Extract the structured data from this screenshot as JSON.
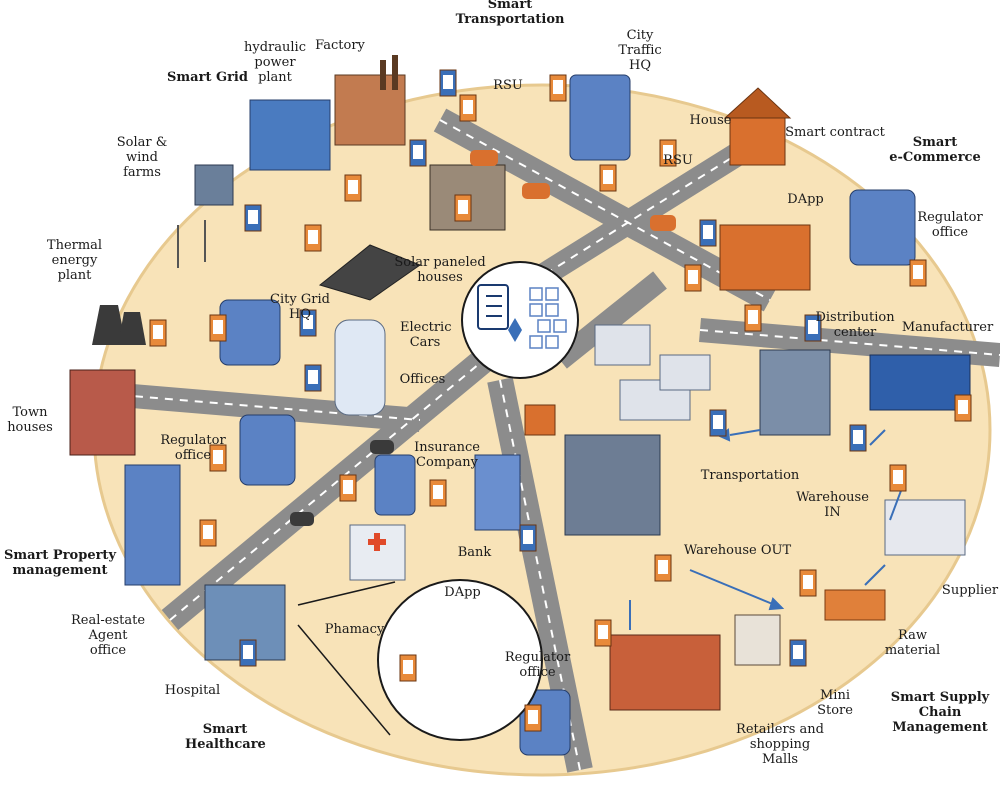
{
  "labels": {
    "smart_transportation": "Smart\nTransportation",
    "city_traffic_hq": "City\nTraffic\nHQ",
    "factory": "Factory",
    "hydraulic_power_plant": "hydraulic\npower\nplant",
    "smart_grid": "Smart Grid",
    "rsu_1": "RSU",
    "rsu_2": "RSU",
    "house": "House",
    "smart_contract": "Smart contract",
    "smart_ecommerce": "Smart\ne-Commerce",
    "dapp_1": "DApp",
    "regulator_office_1": "Regulator\noffice",
    "solar_wind_farms": "Solar &\nwind\nfarms",
    "thermal_energy_plant": "Thermal\nenergy\nplant",
    "solar_paneled_houses": "Solar paneled\nhouses",
    "city_grid_hq": "City Grid\nHQ",
    "electric_cars": "Electric\nCars",
    "offices": "Offices",
    "distribution_center": "Distribution\ncenter",
    "manufacturer": "Manufacturer",
    "town_houses": "Town\nhouses",
    "regulator_office_2": "Regulator\noffice",
    "insurance_company": "Insurance\nCompany",
    "transportation": "Transportation",
    "warehouse_in": "Warehouse\nIN",
    "smart_property_management": "Smart Property\nmanagement",
    "bank": "Bank",
    "warehouse_out": "Warehouse OUT",
    "supplier": "Supplier",
    "dapp_2": "DApp",
    "real_estate_agent_office": "Real-estate\nAgent\noffice",
    "pharmacy": "Phamacy",
    "raw_material": "Raw\nmaterial",
    "regulator_office_3": "Regulator\noffice",
    "hospital": "Hospital",
    "mini_store": "Mini\nStore",
    "smart_supply_chain_management": "Smart Supply\nChain\nManagement",
    "smart_healthcare": "Smart\nHealthcare",
    "retailers_shopping_malls": "Retailers and\nshopping\nMalls"
  },
  "colors": {
    "ground": "#f8e3b8",
    "ground_edge": "#e7c98f",
    "road": "#8c8c8c",
    "road_line": "#ffffff",
    "building_blue": "#5b82c4",
    "building_orange": "#d9702e",
    "node_orange": "#e88a3a",
    "node_blue": "#3a6fb8"
  },
  "icons": [
    "blockchain-icon",
    "checklist-icon",
    "ethereum-icon",
    "wifi-icon",
    "truck-icon",
    "car-icon",
    "wind-turbine-icon",
    "solar-panel-icon",
    "cooling-tower-icon"
  ]
}
